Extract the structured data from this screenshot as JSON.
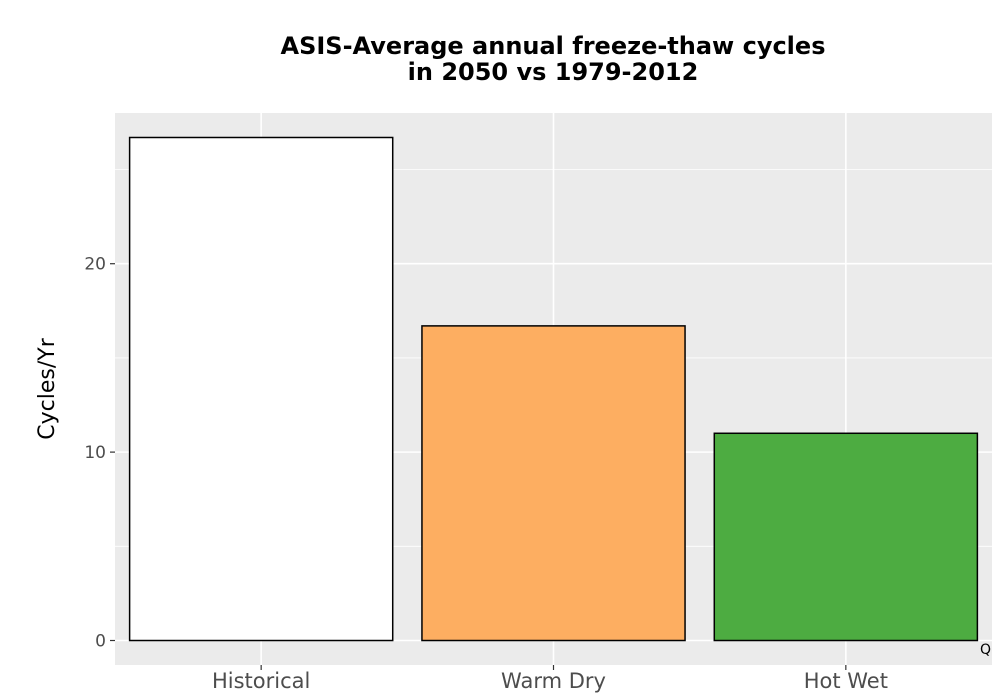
{
  "chart_data": {
    "type": "bar",
    "title_lines": [
      "ASIS-Average annual freeze-thaw cycles",
      "in 2050 vs 1979-2012"
    ],
    "xlabel": "",
    "ylabel": "Cycles/Yr",
    "categories": [
      "Historical",
      "Warm Dry",
      "Hot Wet"
    ],
    "values": [
      26.7,
      16.7,
      11.0
    ],
    "colors": [
      "#ffffff",
      "#fdae61",
      "#4dac41"
    ],
    "bar_outline_color": "#000000",
    "ylim": [
      -1.3,
      28.0
    ],
    "yticks": [
      0,
      10,
      20
    ],
    "ytick_labels": [
      "0",
      "10",
      "20"
    ],
    "grid": true,
    "panel_background": "#ebebeb",
    "grid_color": "#ffffff",
    "corner_note": "Q"
  }
}
